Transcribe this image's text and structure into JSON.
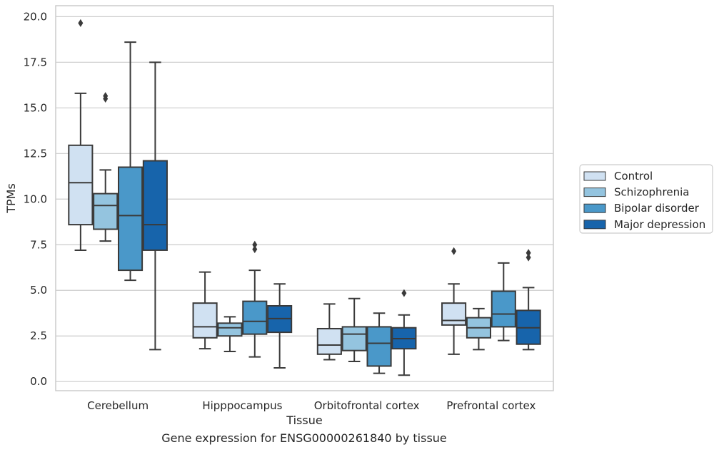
{
  "caption": "Gene expression for ENSG00000261840 by tissue",
  "chart_data": {
    "type": "boxplot",
    "xlabel": "Tissue",
    "ylabel": "TPMs",
    "ylim": [
      -0.5,
      20.6
    ],
    "yticks": [
      "0.0",
      "2.5",
      "5.0",
      "7.5",
      "10.0",
      "12.5",
      "15.0",
      "17.5",
      "20.0"
    ],
    "ytick_values": [
      0,
      2.5,
      5,
      7.5,
      10,
      12.5,
      15,
      17.5,
      20
    ],
    "grid": "horizontal",
    "legend_position": "right",
    "categories": [
      "Cerebellum",
      "Hipppocampus",
      "Orbitofrontal cortex",
      "Prefrontal cortex"
    ],
    "series": [
      {
        "name": "Control",
        "color": "#d0e1f2",
        "boxes": [
          {
            "whislo": 7.2,
            "q1": 8.6,
            "med": 10.9,
            "q3": 12.95,
            "whishi": 15.8,
            "fliers": [
              19.65
            ]
          },
          {
            "whislo": 1.8,
            "q1": 2.4,
            "med": 3.0,
            "q3": 4.3,
            "whishi": 6.0,
            "fliers": []
          },
          {
            "whislo": 1.2,
            "q1": 1.5,
            "med": 2.0,
            "q3": 2.9,
            "whishi": 4.25,
            "fliers": []
          },
          {
            "whislo": 1.5,
            "q1": 3.1,
            "med": 3.35,
            "q3": 4.3,
            "whishi": 5.35,
            "fliers": [
              7.15
            ]
          }
        ]
      },
      {
        "name": "Schizophrenia",
        "color": "#94c4df",
        "boxes": [
          {
            "whislo": 7.7,
            "q1": 8.35,
            "med": 9.65,
            "q3": 10.3,
            "whishi": 11.6,
            "fliers": [
              15.5,
              15.65
            ]
          },
          {
            "whislo": 1.65,
            "q1": 2.5,
            "med": 2.95,
            "q3": 3.2,
            "whishi": 3.55,
            "fliers": []
          },
          {
            "whislo": 1.1,
            "q1": 1.7,
            "med": 2.6,
            "q3": 3.0,
            "whishi": 4.55,
            "fliers": []
          },
          {
            "whislo": 1.75,
            "q1": 2.4,
            "med": 2.95,
            "q3": 3.5,
            "whishi": 4.0,
            "fliers": []
          }
        ]
      },
      {
        "name": "Bipolar disorder",
        "color": "#4a98c9",
        "boxes": [
          {
            "whislo": 5.55,
            "q1": 6.1,
            "med": 9.1,
            "q3": 11.75,
            "whishi": 18.6,
            "fliers": []
          },
          {
            "whislo": 1.35,
            "q1": 2.6,
            "med": 3.3,
            "q3": 4.4,
            "whishi": 6.1,
            "fliers": [
              7.5,
              7.25
            ]
          },
          {
            "whislo": 0.45,
            "q1": 0.85,
            "med": 2.1,
            "q3": 3.0,
            "whishi": 3.75,
            "fliers": []
          },
          {
            "whislo": 2.25,
            "q1": 3.0,
            "med": 3.7,
            "q3": 4.95,
            "whishi": 6.5,
            "fliers": []
          }
        ]
      },
      {
        "name": "Major depression",
        "color": "#1764ab",
        "boxes": [
          {
            "whislo": 1.75,
            "q1": 7.2,
            "med": 8.6,
            "q3": 12.1,
            "whishi": 17.5,
            "fliers": []
          },
          {
            "whislo": 0.75,
            "q1": 2.7,
            "med": 3.45,
            "q3": 4.15,
            "whishi": 5.35,
            "fliers": []
          },
          {
            "whislo": 0.35,
            "q1": 1.8,
            "med": 2.35,
            "q3": 2.95,
            "whishi": 3.65,
            "fliers": [
              4.85
            ]
          },
          {
            "whislo": 1.75,
            "q1": 2.05,
            "med": 2.95,
            "q3": 3.9,
            "whishi": 5.15,
            "fliers": [
              6.8,
              7.05
            ]
          }
        ]
      }
    ]
  }
}
